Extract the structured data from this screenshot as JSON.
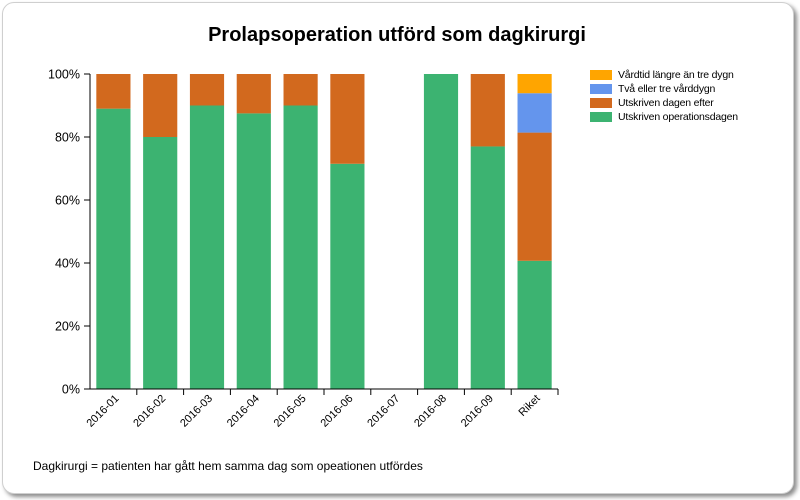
{
  "chart_data": {
    "type": "bar",
    "stacked": true,
    "title": "Prolapsoperation utförd som dagkirurgi",
    "footnote": "Dagkirurgi = patienten har gått hem samma dag som opeationen utfördes",
    "categories": [
      "2016-01",
      "2016-02",
      "2016-03",
      "2016-04",
      "2016-05",
      "2016-06",
      "2016-07",
      "2016-08",
      "2016-09",
      "Riket"
    ],
    "y_ticks": [
      "0%",
      "20%",
      "40%",
      "60%",
      "80%",
      "100%"
    ],
    "ylim": [
      0,
      100
    ],
    "legend_position": "top-right",
    "series": [
      {
        "name": "Utskriven operationsdagen",
        "color": "#3cb371",
        "values": [
          89,
          80,
          90,
          87.5,
          90,
          71.5,
          0,
          100,
          77,
          40.7
        ]
      },
      {
        "name": "Utskriven dagen efter",
        "color": "#d2691e",
        "values": [
          11,
          20,
          10,
          12.5,
          10,
          28.5,
          0,
          0,
          23,
          40.7
        ]
      },
      {
        "name": "Två eller tre vårddygn",
        "color": "#6495ed",
        "values": [
          0,
          0,
          0,
          0,
          0,
          0,
          0,
          0,
          0,
          12.5
        ]
      },
      {
        "name": "Vårdtid längre än tre dygn",
        "color": "#ffa500",
        "values": [
          0,
          0,
          0,
          0,
          0,
          0,
          0,
          0,
          0,
          6.1
        ]
      }
    ],
    "legend_order": [
      3,
      2,
      1,
      0
    ]
  }
}
